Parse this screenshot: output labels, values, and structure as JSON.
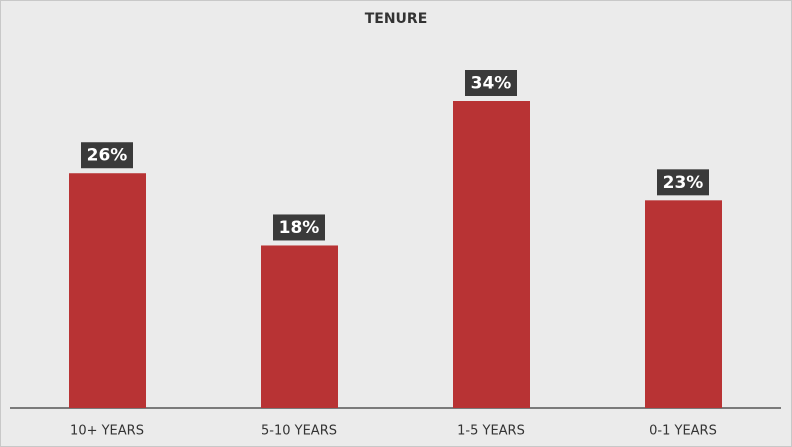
{
  "chart_data": {
    "type": "bar",
    "title": "TENURE",
    "categories": [
      "10+ YEARS",
      "5-10 YEARS",
      "1-5 YEARS",
      "0-1 YEARS"
    ],
    "values": [
      26,
      18,
      34,
      23
    ],
    "value_labels": [
      "26%",
      "18%",
      "34%",
      "23%"
    ],
    "color": "#b83334"
  }
}
